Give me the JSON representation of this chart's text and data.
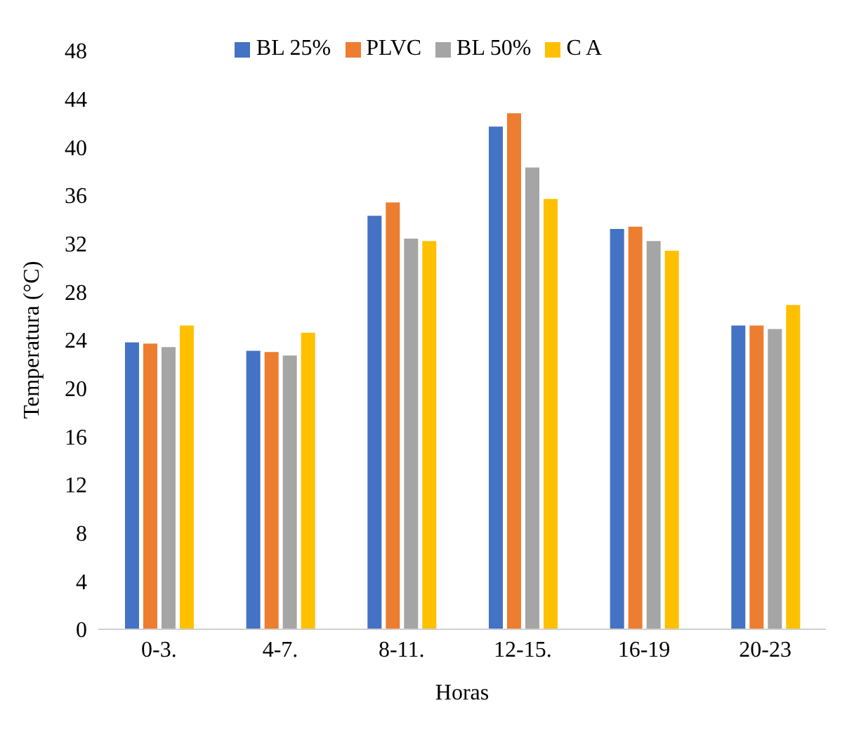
{
  "chart_data": {
    "type": "bar",
    "xlabel": "Horas",
    "ylabel": "Temperatura (°C)",
    "categories": [
      "0-3.",
      "4-7.",
      "8-11.",
      "12-15.",
      "16-19",
      "20-23"
    ],
    "series": [
      {
        "name": "BL 25%",
        "color": "#4472c4",
        "values": [
          23.8,
          23.1,
          34.3,
          41.7,
          33.2,
          25.2
        ]
      },
      {
        "name": "PLVC",
        "color": "#ed7d31",
        "values": [
          23.7,
          23.0,
          35.4,
          42.8,
          33.4,
          25.2
        ]
      },
      {
        "name": "BL 50%",
        "color": "#a5a5a5",
        "values": [
          23.4,
          22.7,
          32.4,
          38.3,
          32.2,
          24.9
        ]
      },
      {
        "name": "C A",
        "color": "#ffc000",
        "values": [
          25.2,
          24.6,
          32.2,
          35.7,
          31.4,
          26.9
        ]
      }
    ],
    "ylim": [
      0,
      48
    ],
    "yticks": [
      0,
      4,
      8,
      12,
      16,
      20,
      24,
      28,
      32,
      36,
      40,
      44,
      48
    ],
    "grid": false,
    "legend": "top"
  }
}
